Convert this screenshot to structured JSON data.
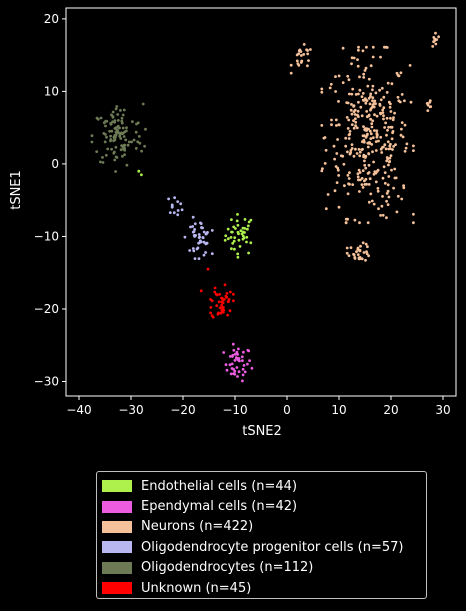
{
  "chart_data": {
    "type": "scatter",
    "xlabel": "tSNE2",
    "ylabel": "tSNE1",
    "xlim": [
      -42.5,
      32.5
    ],
    "ylim": [
      -32,
      21.5
    ],
    "xticks": [
      -40,
      -30,
      -20,
      -10,
      0,
      10,
      20,
      30
    ],
    "yticks": [
      -30,
      -20,
      -10,
      0,
      10,
      20
    ],
    "xtick_labels": [
      "−40",
      "−30",
      "−20",
      "−10",
      "0",
      "10",
      "20",
      "30"
    ],
    "ytick_labels": [
      "−30",
      "−20",
      "−10",
      "0",
      "10",
      "20"
    ],
    "grid": false,
    "legend_position": "below",
    "series": [
      {
        "name": "Endothelial cells (n=44)",
        "color": "#aef04c",
        "clusters": [
          {
            "cx": -9.0,
            "cy": -9.8,
            "sx": 1.4,
            "sy": 1.4,
            "n": 42
          }
        ],
        "extra_points": [
          [
            -28.5,
            -1.0
          ],
          [
            -28.0,
            -1.5
          ]
        ]
      },
      {
        "name": "Ependymal cells (n=42)",
        "color": "#ec5ce0",
        "clusters": [
          {
            "cx": -9.5,
            "cy": -27.5,
            "sx": 1.3,
            "sy": 1.2,
            "n": 42
          }
        ]
      },
      {
        "name": "Neurons (n=422)",
        "color": "#f5c19a",
        "clusters": [
          {
            "cx": 15.5,
            "cy": 4.0,
            "sx": 4.0,
            "sy": 5.5,
            "n": 340
          },
          {
            "cx": 3.0,
            "cy": 14.5,
            "sx": 1.0,
            "sy": 0.9,
            "n": 22
          },
          {
            "cx": 28.5,
            "cy": 17.0,
            "sx": 0.3,
            "sy": 0.8,
            "n": 10
          },
          {
            "cx": 27.5,
            "cy": 8.2,
            "sx": 0.4,
            "sy": 0.5,
            "n": 8
          },
          {
            "cx": 14.0,
            "cy": -12.2,
            "sx": 1.1,
            "sy": 0.6,
            "n": 30
          },
          {
            "cx": 20.5,
            "cy": -4.0,
            "sx": 1.5,
            "sy": 1.5,
            "n": 12
          }
        ]
      },
      {
        "name": "Oligodendrocyte progenitor cells (n=57)",
        "color": "#b9b7f0",
        "clusters": [
          {
            "cx": -17.0,
            "cy": -10.2,
            "sx": 1.2,
            "sy": 1.3,
            "n": 45
          },
          {
            "cx": -21.5,
            "cy": -5.7,
            "sx": 0.8,
            "sy": 0.6,
            "n": 12
          }
        ]
      },
      {
        "name": "Oligodendrocytes (n=112)",
        "color": "#6c7a55",
        "clusters": [
          {
            "cx": -32.5,
            "cy": 3.8,
            "sx": 2.4,
            "sy": 2.2,
            "n": 112
          }
        ]
      },
      {
        "name": "Unknown (n=45)",
        "color": "#ff0000",
        "clusters": [
          {
            "cx": -12.5,
            "cy": -19.0,
            "sx": 1.0,
            "sy": 1.3,
            "n": 43
          }
        ],
        "extra_points": [
          [
            -15.2,
            -14.5
          ],
          [
            -16.5,
            -17.5
          ]
        ]
      }
    ]
  }
}
